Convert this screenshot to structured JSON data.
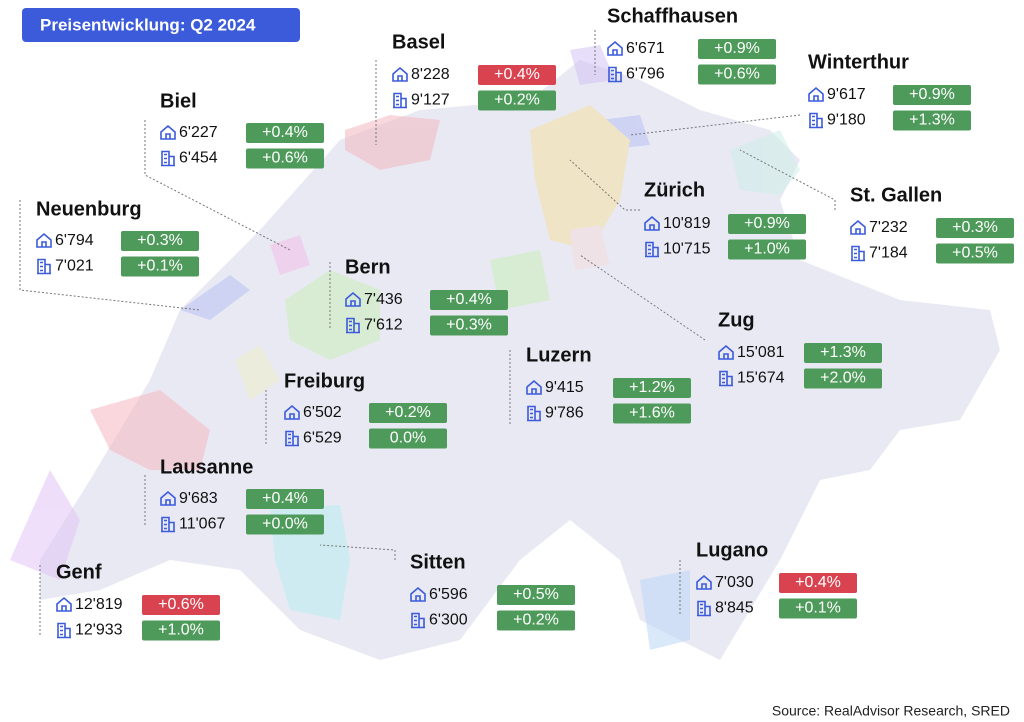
{
  "title": "Preisentwicklung: Q2 2024",
  "source": "Source: RealAdvisor Research, SRED",
  "cities": [
    {
      "name": "Basel",
      "house": {
        "price": "8'228",
        "change": "+0.4%",
        "color": "#d94350"
      },
      "apartment": {
        "price": "9'127",
        "change": "+0.2%",
        "color": "#4e9a5a"
      }
    },
    {
      "name": "Schaffhausen",
      "house": {
        "price": "6'671",
        "change": "+0.9%",
        "color": "#4e9a5a"
      },
      "apartment": {
        "price": "6'796",
        "change": "+0.6%",
        "color": "#4e9a5a"
      }
    },
    {
      "name": "Winterthur",
      "house": {
        "price": "9'617",
        "change": "+0.9%",
        "color": "#4e9a5a"
      },
      "apartment": {
        "price": "9'180",
        "change": "+1.3%",
        "color": "#4e9a5a"
      }
    },
    {
      "name": "Biel",
      "house": {
        "price": "6'227",
        "change": "+0.4%",
        "color": "#4e9a5a"
      },
      "apartment": {
        "price": "6'454",
        "change": "+0.6%",
        "color": "#4e9a5a"
      }
    },
    {
      "name": "Zürich",
      "house": {
        "price": "10'819",
        "change": "+0.9%",
        "color": "#4e9a5a"
      },
      "apartment": {
        "price": "10'715",
        "change": "+1.0%",
        "color": "#4e9a5a"
      }
    },
    {
      "name": "St. Gallen",
      "house": {
        "price": "7'232",
        "change": "+0.3%",
        "color": "#4e9a5a"
      },
      "apartment": {
        "price": "7'184",
        "change": "+0.5%",
        "color": "#4e9a5a"
      }
    },
    {
      "name": "Neuenburg",
      "house": {
        "price": "6'794",
        "change": "+0.3%",
        "color": "#4e9a5a"
      },
      "apartment": {
        "price": "7'021",
        "change": "+0.1%",
        "color": "#4e9a5a"
      }
    },
    {
      "name": "Bern",
      "house": {
        "price": "7'436",
        "change": "+0.4%",
        "color": "#4e9a5a"
      },
      "apartment": {
        "price": "7'612",
        "change": "+0.3%",
        "color": "#4e9a5a"
      }
    },
    {
      "name": "Zug",
      "house": {
        "price": "15'081",
        "change": "+1.3%",
        "color": "#4e9a5a"
      },
      "apartment": {
        "price": "15'674",
        "change": "+2.0%",
        "color": "#4e9a5a"
      }
    },
    {
      "name": "Luzern",
      "house": {
        "price": "9'415",
        "change": "+1.2%",
        "color": "#4e9a5a"
      },
      "apartment": {
        "price": "9'786",
        "change": "+1.6%",
        "color": "#4e9a5a"
      }
    },
    {
      "name": "Freiburg",
      "house": {
        "price": "6'502",
        "change": "+0.2%",
        "color": "#4e9a5a"
      },
      "apartment": {
        "price": "6'529",
        "change": "0.0%",
        "color": "#4e9a5a"
      }
    },
    {
      "name": "Lausanne",
      "house": {
        "price": "9'683",
        "change": "+0.4%",
        "color": "#4e9a5a"
      },
      "apartment": {
        "price": "11'067",
        "change": "+0.0%",
        "color": "#4e9a5a"
      }
    },
    {
      "name": "Sitten",
      "house": {
        "price": "6'596",
        "change": "+0.5%",
        "color": "#4e9a5a"
      },
      "apartment": {
        "price": "6'300",
        "change": "+0.2%",
        "color": "#4e9a5a"
      }
    },
    {
      "name": "Lugano",
      "house": {
        "price": "7'030",
        "change": "+0.4%",
        "color": "#d94350"
      },
      "apartment": {
        "price": "8'845",
        "change": "+0.1%",
        "color": "#4e9a5a"
      }
    },
    {
      "name": "Genf",
      "house": {
        "price": "12'819",
        "change": "+0.6%",
        "color": "#d94350"
      },
      "apartment": {
        "price": "12'933",
        "change": "+1.0%",
        "color": "#4e9a5a"
      }
    }
  ]
}
